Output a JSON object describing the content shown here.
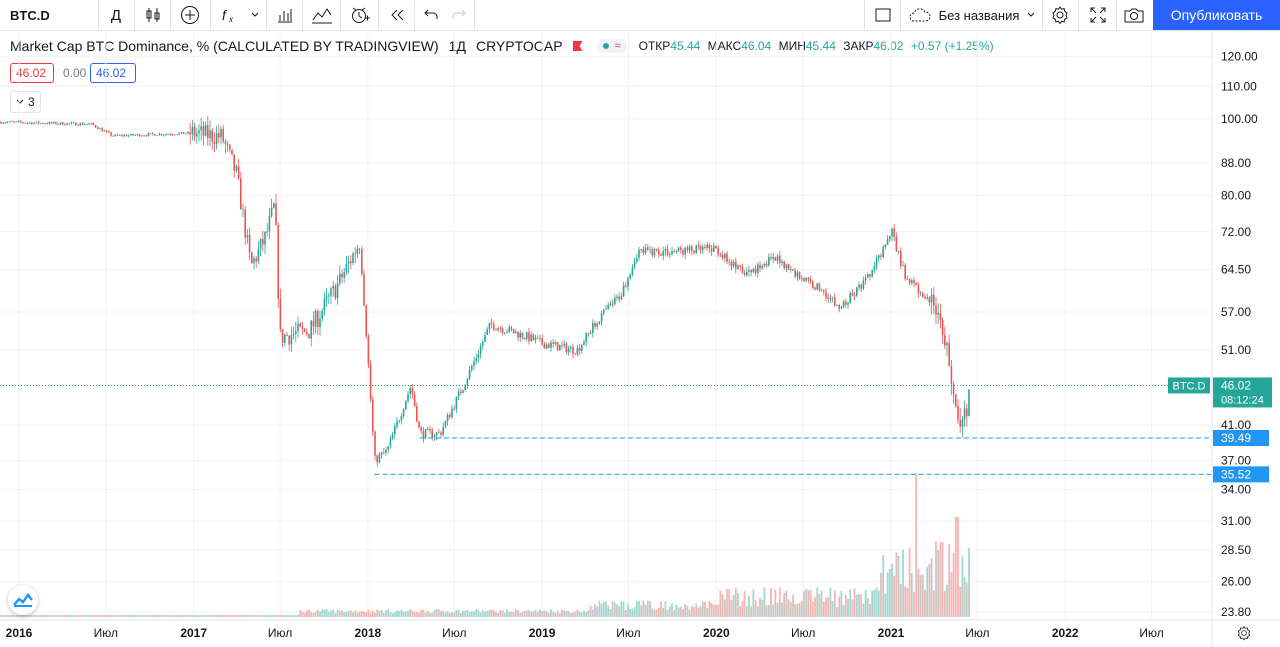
{
  "toolbar": {
    "symbol": "BTC.D",
    "interval": "Д",
    "layout_name": "Без названия",
    "publish_label": "Опубликовать",
    "icons": [
      "candles-icon",
      "plus-circle-icon",
      "fx-icon",
      "chevron-down-icon",
      "bar-chart-icon",
      "indicator-icon",
      "alert-icon",
      "replay-icon",
      "undo-icon",
      "redo-icon",
      "layout-box-icon",
      "cloud-icon",
      "gear-icon",
      "fullscreen-icon",
      "camera-icon"
    ]
  },
  "legend": {
    "title": "Market Cap BTC Dominance, % (CALCULATED BY TRADINGVIEW)",
    "interval": "1Д",
    "exchange": "CRYPTOCAP",
    "pill_icon": "≈",
    "open_label": "ОТКР",
    "open": "45.44",
    "high_label": "МАКС",
    "high": "46.04",
    "low_label": "МИН",
    "low": "45.44",
    "close_label": "ЗАКР",
    "close": "46.02",
    "change": "+0.57 (+1.25%)",
    "box_bid": "46.02",
    "box_spread": "0.00",
    "box_ask": "46.02",
    "collapse_count": "3"
  },
  "colors": {
    "up": "#26a69a",
    "down": "#ef5350",
    "accent": "#2962ff",
    "hline": "#2196f3"
  },
  "chart_data": {
    "type": "candlestick",
    "symbol": "BTC.D",
    "y_scale": "log",
    "y_ticks": [
      "120.00",
      "110.00",
      "100.00",
      "88.00",
      "80.00",
      "72.00",
      "64.50",
      "57.00",
      "51.00",
      "41.00",
      "37.00",
      "34.00",
      "31.00",
      "28.50",
      "26.00",
      "23.80"
    ],
    "x_ticks": [
      "2016",
      "Июл",
      "2017",
      "Июл",
      "2018",
      "Июл",
      "2019",
      "Июл",
      "2020",
      "Июл",
      "2021",
      "Июл",
      "2022",
      "Июл"
    ],
    "series_path": [
      [
        "2016-01-01",
        99.0
      ],
      [
        "2016-06-01",
        98.5
      ],
      [
        "2016-07-15",
        95.2
      ],
      [
        "2016-12-31",
        96.0
      ],
      [
        "2017-03-01",
        95.0
      ],
      [
        "2017-04-01",
        85.0
      ],
      [
        "2017-05-01",
        65.0
      ],
      [
        "2017-06-01",
        71.0
      ],
      [
        "2017-06-20",
        78.0
      ],
      [
        "2017-07-01",
        53.0
      ],
      [
        "2017-09-01",
        54.0
      ],
      [
        "2017-11-01",
        62.0
      ],
      [
        "2017-12-15",
        70.0
      ],
      [
        "2017-12-31",
        51.0
      ],
      [
        "2018-01-15",
        37.0
      ],
      [
        "2018-02-10",
        38.0
      ],
      [
        "2018-04-01",
        46.0
      ],
      [
        "2018-04-20",
        40.0
      ],
      [
        "2018-06-01",
        40.0
      ],
      [
        "2018-07-20",
        46.0
      ],
      [
        "2018-09-15",
        55.0
      ],
      [
        "2018-12-01",
        53.0
      ],
      [
        "2019-01-01",
        52.0
      ],
      [
        "2019-03-15",
        51.0
      ],
      [
        "2019-05-01",
        56.0
      ],
      [
        "2019-06-15",
        60.0
      ],
      [
        "2019-07-20",
        68.0
      ],
      [
        "2019-10-01",
        68.0
      ],
      [
        "2019-12-31",
        68.5
      ],
      [
        "2020-03-01",
        63.5
      ],
      [
        "2020-04-15",
        66.0
      ],
      [
        "2020-05-15",
        66.5
      ],
      [
        "2020-06-01",
        64.5
      ],
      [
        "2020-08-15",
        60.5
      ],
      [
        "2020-09-15",
        57.5
      ],
      [
        "2020-11-15",
        63.0
      ],
      [
        "2021-01-03",
        72.0
      ],
      [
        "2021-02-01",
        63.0
      ],
      [
        "2021-03-01",
        60.5
      ],
      [
        "2021-04-15",
        56.5
      ],
      [
        "2021-05-15",
        44.0
      ],
      [
        "2021-05-28",
        40.0
      ],
      [
        "2021-06-10",
        43.0
      ],
      [
        "2021-06-16",
        46.02
      ]
    ],
    "last": {
      "label": "BTC.D",
      "value": "46.02",
      "countdown": "08:12:24"
    },
    "horizontal_lines": [
      {
        "value": "39.49",
        "from": "2018-04-20"
      },
      {
        "value": "35.52",
        "from": "2018-01-15"
      }
    ]
  }
}
